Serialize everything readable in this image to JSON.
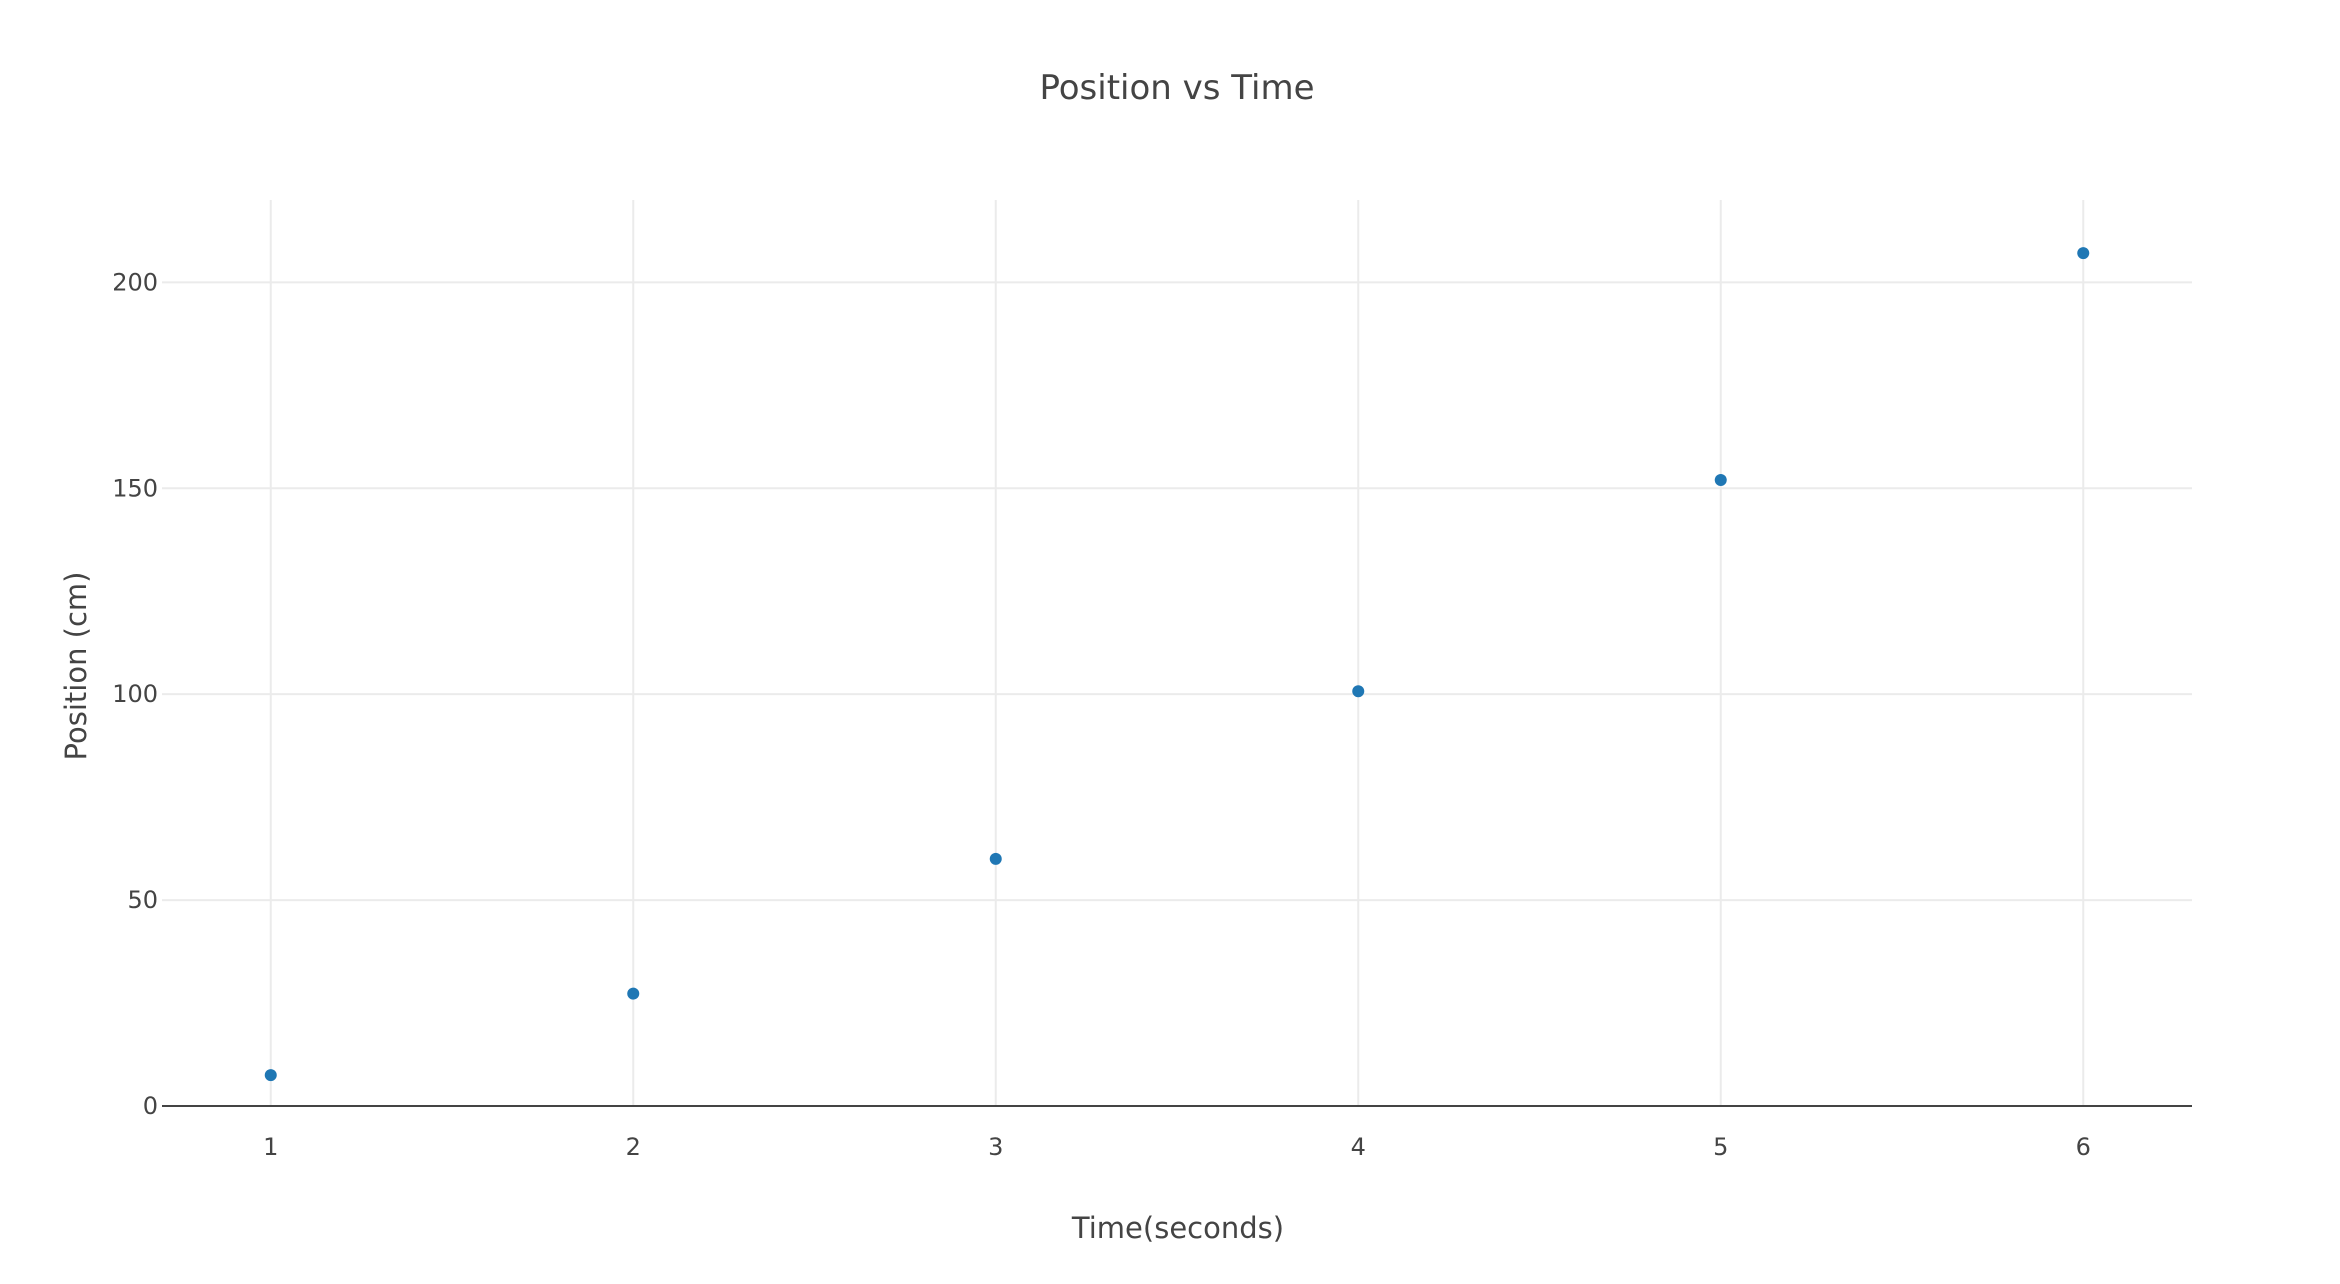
{
  "chart_data": {
    "type": "scatter",
    "title": "Position vs Time",
    "xlabel": "Time(seconds)",
    "ylabel": "Position (cm)",
    "xlim": [
      0.7,
      6.3
    ],
    "ylim": [
      0,
      220
    ],
    "x_ticks": [
      1,
      2,
      3,
      4,
      5,
      6
    ],
    "y_ticks": [
      0,
      50,
      100,
      150,
      200
    ],
    "grid": true,
    "series": [
      {
        "name": "Position",
        "color": "#1f77b4",
        "x": [
          1,
          2,
          3,
          4,
          5,
          6
        ],
        "y": [
          7.5,
          27.3,
          60,
          100.7,
          152,
          207.1
        ]
      }
    ]
  }
}
